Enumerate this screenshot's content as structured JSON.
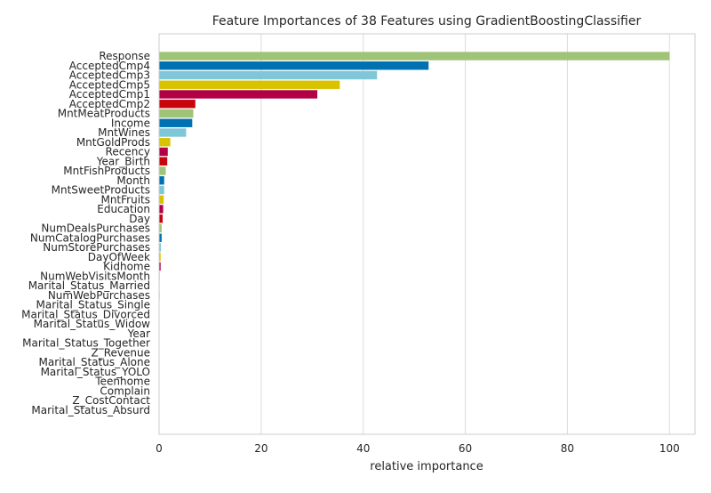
{
  "chart_data": {
    "type": "bar",
    "orientation": "horizontal",
    "title": "Feature Importances of 38 Features using GradientBoostingClassifier",
    "xlabel": "relative importance",
    "ylabel": "",
    "xlim": [
      0,
      105
    ],
    "xticks": [
      "0",
      "20",
      "40",
      "60",
      "80",
      "100"
    ],
    "grid": true,
    "categories": [
      "Response",
      "AcceptedCmp4",
      "AcceptedCmp3",
      "AcceptedCmp5",
      "AcceptedCmp1",
      "AcceptedCmp2",
      "MntMeatProducts",
      "Income",
      "MntWines",
      "MntGoldProds",
      "Recency",
      "Year_Birth",
      "MntFishProducts",
      "Month",
      "MntSweetProducts",
      "MntFruits",
      "Education",
      "Day",
      "NumDealsPurchases",
      "NumCatalogPurchases",
      "NumStorePurchases",
      "DayOfWeek",
      "Kidhome",
      "NumWebVisitsMonth",
      "Marital_Status_Married",
      "NumWebPurchases",
      "Marital_Status_Single",
      "Marital_Status_Divorced",
      "Marital_Status_Widow",
      "Year",
      "Marital_Status_Together",
      "Z_Revenue",
      "Marital_Status_Alone",
      "Marital_Status_YOLO",
      "Teenhome",
      "Complain",
      "Z_CostContact",
      "Marital_Status_Absurd"
    ],
    "values": [
      100,
      52.8,
      42.7,
      35.4,
      31.0,
      7.1,
      6.7,
      6.5,
      5.3,
      2.2,
      1.7,
      1.6,
      1.3,
      1.0,
      1.0,
      0.9,
      0.8,
      0.7,
      0.5,
      0.5,
      0.35,
      0.3,
      0.3,
      0.1,
      0.1,
      0.1,
      0.08,
      0.06,
      0.05,
      0.04,
      0.03,
      0.02,
      0.02,
      0.02,
      0.01,
      0.01,
      0,
      0
    ],
    "colors": [
      "#9fc377",
      "#0072b2",
      "#7fc7d8",
      "#d9c200",
      "#b10046",
      "#c8050d"
    ]
  }
}
